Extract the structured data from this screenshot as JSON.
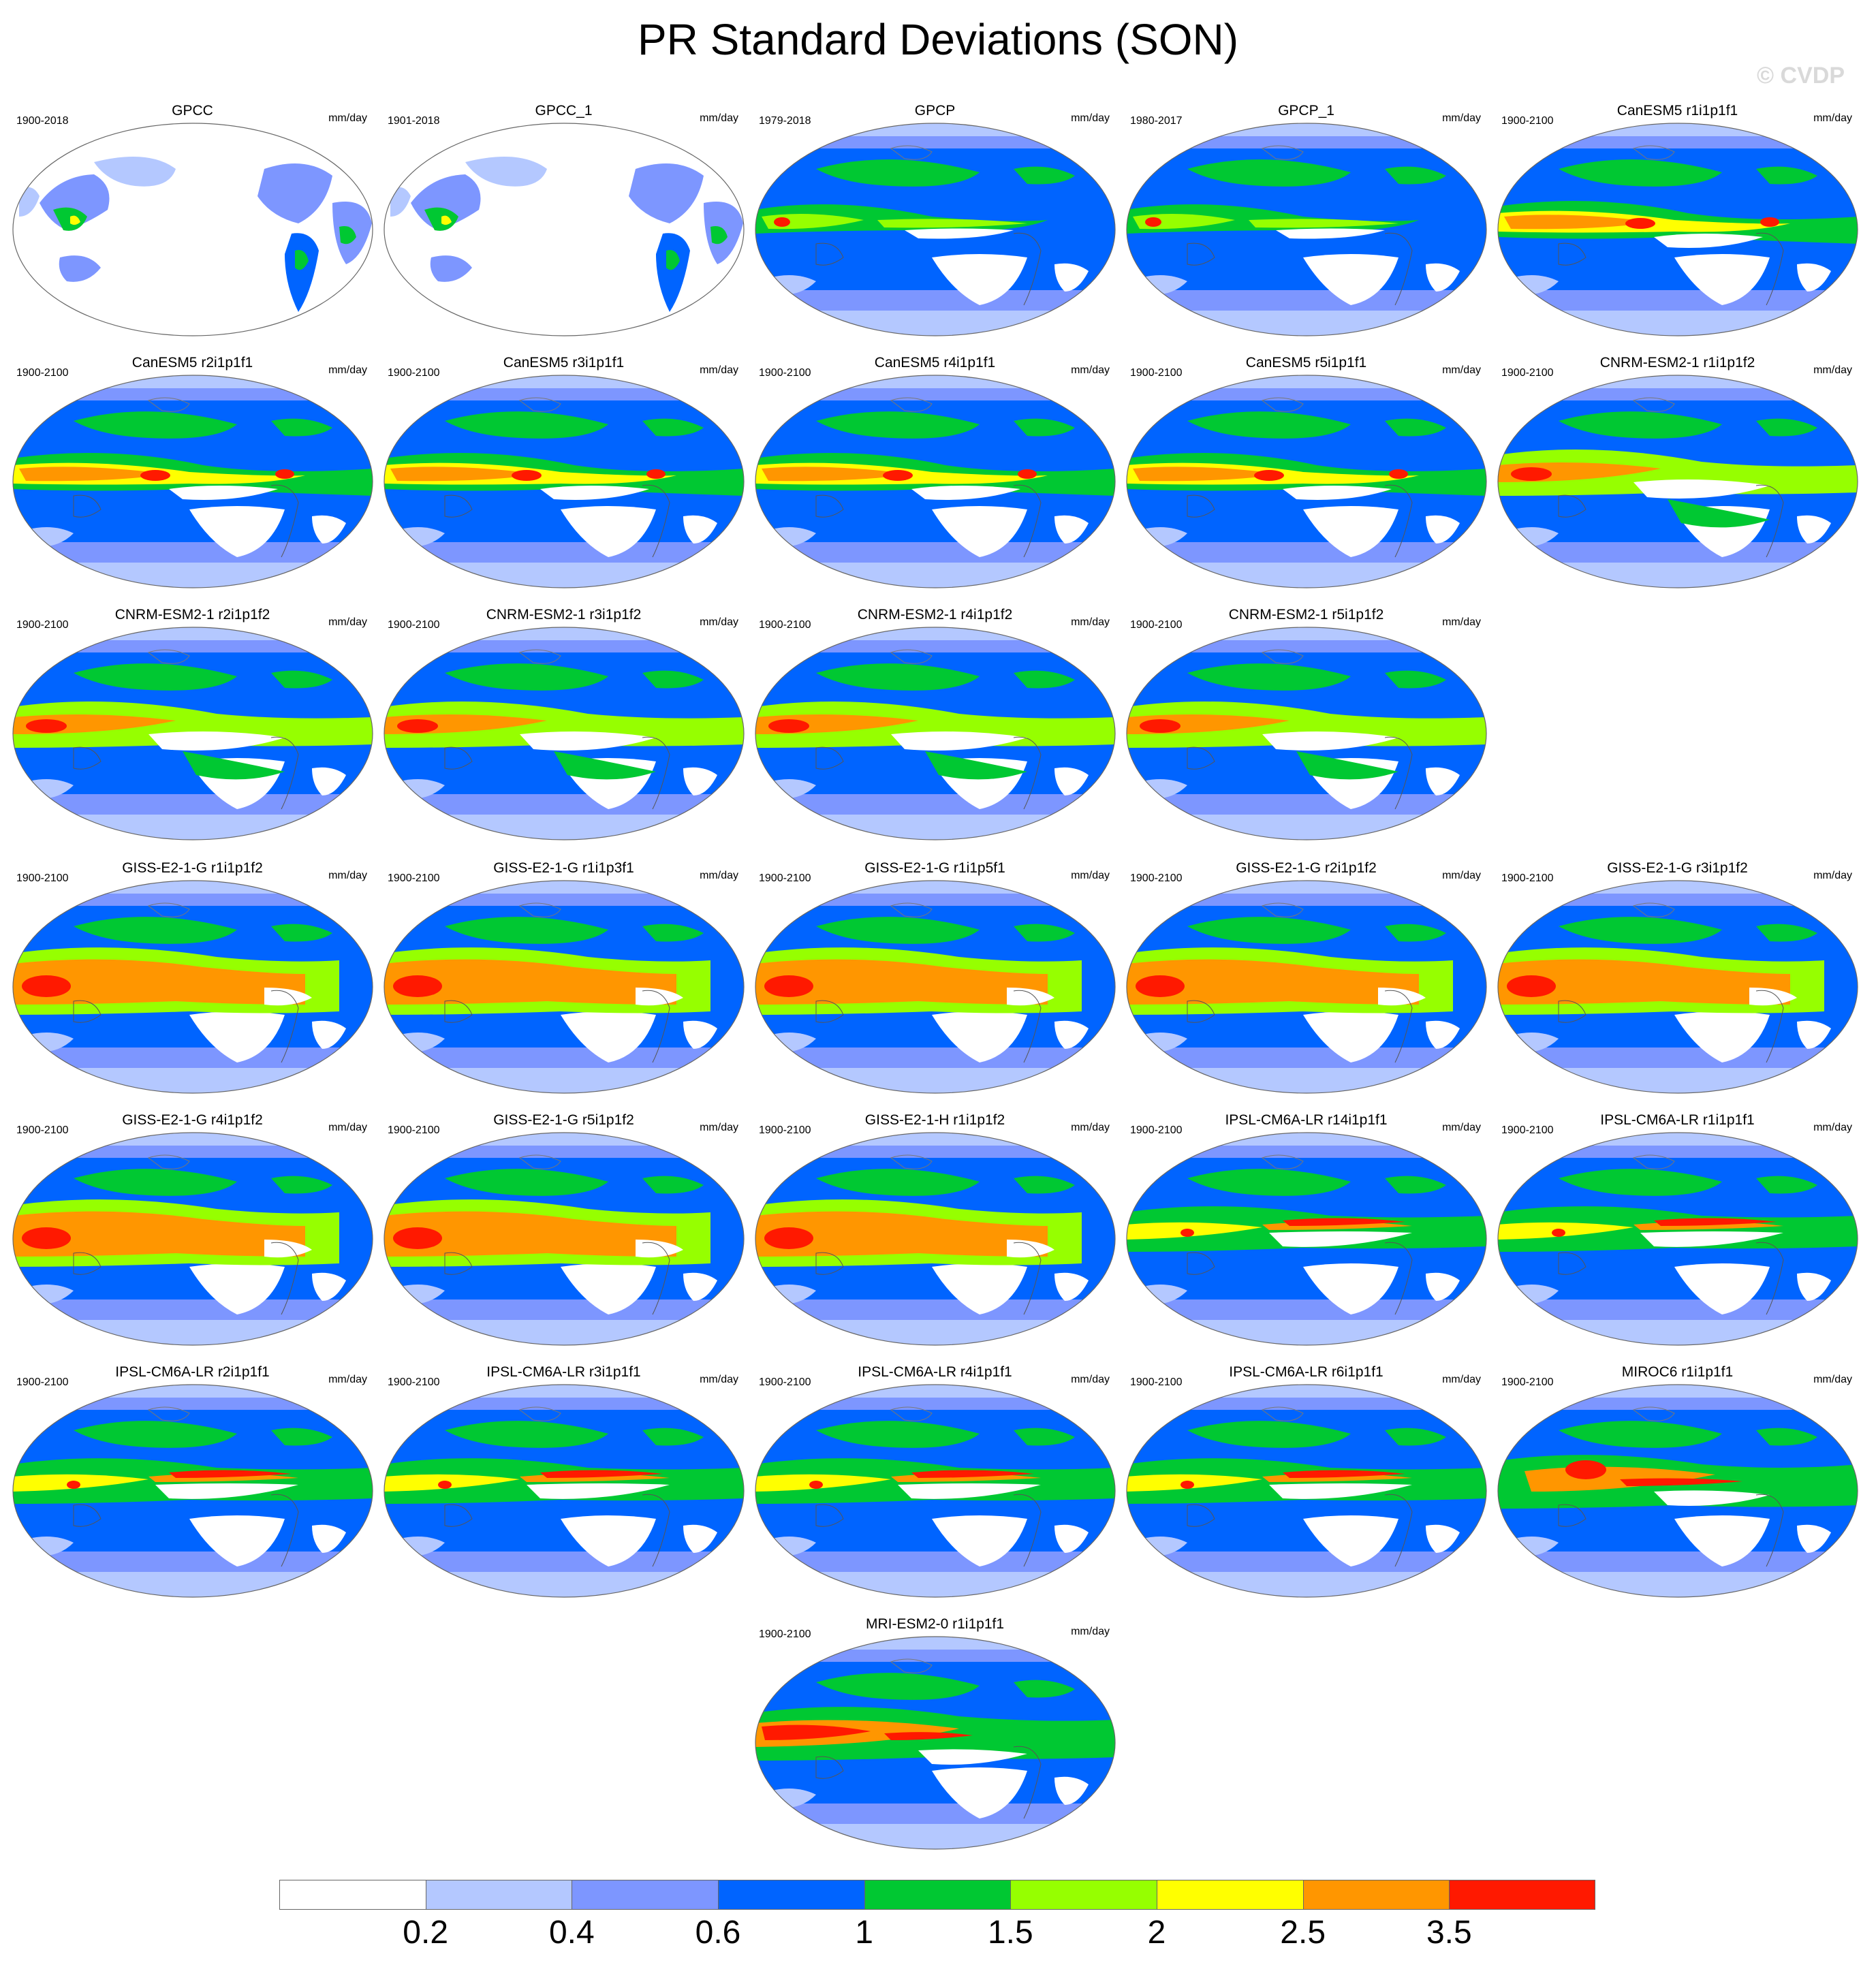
{
  "title": "PR Standard Deviations (SON)",
  "watermark": "© CVDP",
  "units": "mm/day",
  "panels": [
    {
      "name": "GPCC",
      "years": "1900-2018",
      "style": "land"
    },
    {
      "name": "GPCC_1",
      "years": "1901-2018",
      "style": "land"
    },
    {
      "name": "GPCP",
      "years": "1979-2018",
      "style": "obs"
    },
    {
      "name": "GPCP_1",
      "years": "1980-2017",
      "style": "obs"
    },
    {
      "name": "CanESM5 r1i1p1f1",
      "years": "1900-2100",
      "style": "can"
    },
    {
      "name": "CanESM5 r2i1p1f1",
      "years": "1900-2100",
      "style": "can"
    },
    {
      "name": "CanESM5 r3i1p1f1",
      "years": "1900-2100",
      "style": "can"
    },
    {
      "name": "CanESM5 r4i1p1f1",
      "years": "1900-2100",
      "style": "can"
    },
    {
      "name": "CanESM5 r5i1p1f1",
      "years": "1900-2100",
      "style": "can"
    },
    {
      "name": "CNRM-ESM2-1 r1i1p1f2",
      "years": "1900-2100",
      "style": "cnrm"
    },
    {
      "name": "CNRM-ESM2-1 r2i1p1f2",
      "years": "1900-2100",
      "style": "cnrm"
    },
    {
      "name": "CNRM-ESM2-1 r3i1p1f2",
      "years": "1900-2100",
      "style": "cnrm"
    },
    {
      "name": "CNRM-ESM2-1 r4i1p1f2",
      "years": "1900-2100",
      "style": "cnrm"
    },
    {
      "name": "CNRM-ESM2-1 r5i1p1f2",
      "years": "1900-2100",
      "style": "cnrm"
    },
    {
      "name": "GISS-E2-1-G r1i1p1f2",
      "years": "1900-2100",
      "style": "giss"
    },
    {
      "name": "GISS-E2-1-G r1i1p3f1",
      "years": "1900-2100",
      "style": "giss"
    },
    {
      "name": "GISS-E2-1-G r1i1p5f1",
      "years": "1900-2100",
      "style": "giss"
    },
    {
      "name": "GISS-E2-1-G r2i1p1f2",
      "years": "1900-2100",
      "style": "giss"
    },
    {
      "name": "GISS-E2-1-G r3i1p1f2",
      "years": "1900-2100",
      "style": "giss"
    },
    {
      "name": "GISS-E2-1-G r4i1p1f2",
      "years": "1900-2100",
      "style": "giss"
    },
    {
      "name": "GISS-E2-1-G r5i1p1f2",
      "years": "1900-2100",
      "style": "giss"
    },
    {
      "name": "GISS-E2-1-H r1i1p1f2",
      "years": "1900-2100",
      "style": "giss"
    },
    {
      "name": "IPSL-CM6A-LR r14i1p1f1",
      "years": "1900-2100",
      "style": "ipsl"
    },
    {
      "name": "IPSL-CM6A-LR r1i1p1f1",
      "years": "1900-2100",
      "style": "ipsl"
    },
    {
      "name": "IPSL-CM6A-LR r2i1p1f1",
      "years": "1900-2100",
      "style": "ipsl"
    },
    {
      "name": "IPSL-CM6A-LR r3i1p1f1",
      "years": "1900-2100",
      "style": "ipsl"
    },
    {
      "name": "IPSL-CM6A-LR r4i1p1f1",
      "years": "1900-2100",
      "style": "ipsl"
    },
    {
      "name": "IPSL-CM6A-LR r6i1p1f1",
      "years": "1900-2100",
      "style": "ipsl"
    },
    {
      "name": "MIROC6 r1i1p1f1",
      "years": "1900-2100",
      "style": "miroc"
    },
    {
      "name": "MRI-ESM2-0 r1i1p1f1",
      "years": "1900-2100",
      "style": "mri"
    }
  ],
  "colorbar": {
    "colors": [
      "#ffffff",
      "#b4c8ff",
      "#7d96ff",
      "#0064ff",
      "#00c832",
      "#96ff00",
      "#ffff00",
      "#ff9600",
      "#ff1900"
    ],
    "labels": [
      "0.2",
      "0.4",
      "0.6",
      "1",
      "1.5",
      "2",
      "2.5",
      "3.5"
    ]
  }
}
